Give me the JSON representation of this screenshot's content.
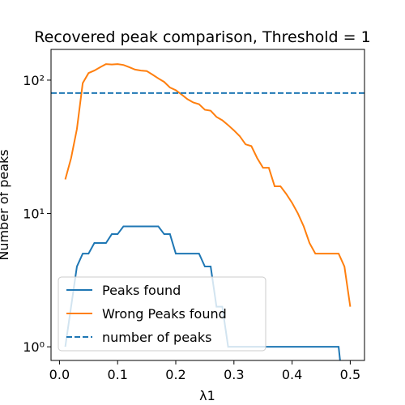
{
  "chart_data": {
    "type": "line",
    "title": "Recovered peak comparison, Threshold = 1",
    "xlabel": "λ1",
    "ylabel": "Number of peaks",
    "x": [
      0.01,
      0.02,
      0.03,
      0.04,
      0.05,
      0.06,
      0.07,
      0.08,
      0.09,
      0.1,
      0.11,
      0.12,
      0.13,
      0.14,
      0.15,
      0.16,
      0.17,
      0.18,
      0.19,
      0.2,
      0.21,
      0.22,
      0.23,
      0.24,
      0.25,
      0.26,
      0.27,
      0.28,
      0.29,
      0.3,
      0.31,
      0.32,
      0.33,
      0.34,
      0.35,
      0.36,
      0.37,
      0.38,
      0.39,
      0.4,
      0.41,
      0.42,
      0.43,
      0.44,
      0.45,
      0.46,
      0.47,
      0.48,
      0.49,
      0.5
    ],
    "series": [
      {
        "name": "Peaks found",
        "color": "#1f77b4",
        "values": [
          1,
          2,
          4,
          5,
          5,
          6,
          6,
          6,
          7,
          7,
          8,
          8,
          8,
          8,
          8,
          8,
          8,
          7,
          7,
          5,
          5,
          5,
          5,
          5,
          4,
          4,
          2,
          2,
          1,
          1,
          1,
          1,
          1,
          1,
          1,
          1,
          1,
          1,
          1,
          1,
          1,
          1,
          1,
          1,
          1,
          1,
          1,
          1,
          0,
          0
        ]
      },
      {
        "name": "Wrong Peaks found",
        "color": "#ff7f0e",
        "values": [
          18,
          26,
          43,
          95,
          113,
          118,
          125,
          132,
          131,
          132,
          130,
          125,
          120,
          118,
          117,
          110,
          103,
          97,
          88,
          84,
          78,
          72,
          68,
          66,
          60,
          59,
          53,
          50,
          46,
          42,
          38,
          33,
          32,
          26,
          22,
          22,
          16,
          16,
          14,
          12,
          10,
          8,
          6,
          5,
          5,
          5,
          5,
          5,
          4,
          2
        ]
      }
    ],
    "hlines": [
      {
        "name": "number of peaks",
        "color": "#1f77b4",
        "value": 80,
        "dashed": true
      }
    ],
    "xlim": [
      -0.0145,
      0.5245
    ],
    "ylim": [
      0.79,
      170
    ],
    "log_y": true,
    "xticks": [
      {
        "value": 0,
        "label": "0.0"
      },
      0.1,
      0.2,
      0.3,
      0.4,
      0.5
    ],
    "yticks": [
      {
        "value": 1,
        "label": "10⁰"
      },
      {
        "value": 10,
        "label": "10¹"
      },
      {
        "value": 100,
        "label": "10²"
      }
    ],
    "legend": "lower left"
  }
}
